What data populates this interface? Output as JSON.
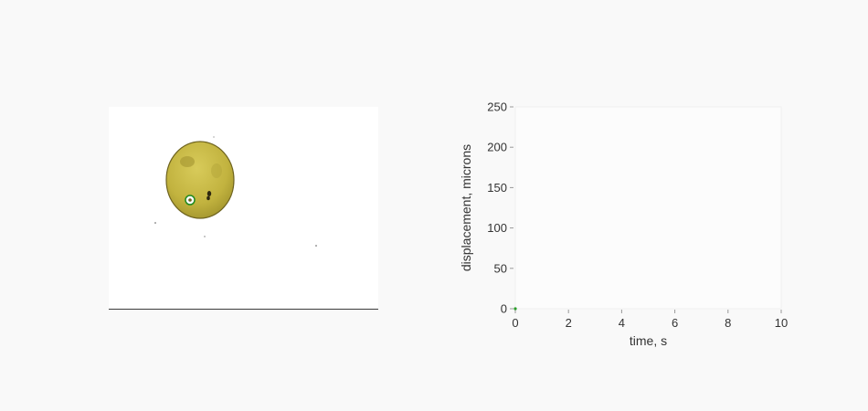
{
  "microscope": {
    "colors": {
      "cell_fill": "#c6b845",
      "cell_edge": "#6f6420",
      "marker_ring": "#1f8a1f"
    }
  },
  "chart_data": {
    "type": "scatter",
    "xlabel": "time, s",
    "ylabel": "displacement, microns",
    "xlim": [
      0,
      10
    ],
    "ylim": [
      0,
      250
    ],
    "x_ticks": [
      "0",
      "2",
      "4",
      "6",
      "8",
      "10"
    ],
    "y_ticks": [
      "0",
      "50",
      "100",
      "150",
      "200",
      "250"
    ],
    "series": [
      {
        "x": [
          0
        ],
        "y": [
          0
        ],
        "color": "#2a9d2a"
      }
    ],
    "grid": false
  }
}
